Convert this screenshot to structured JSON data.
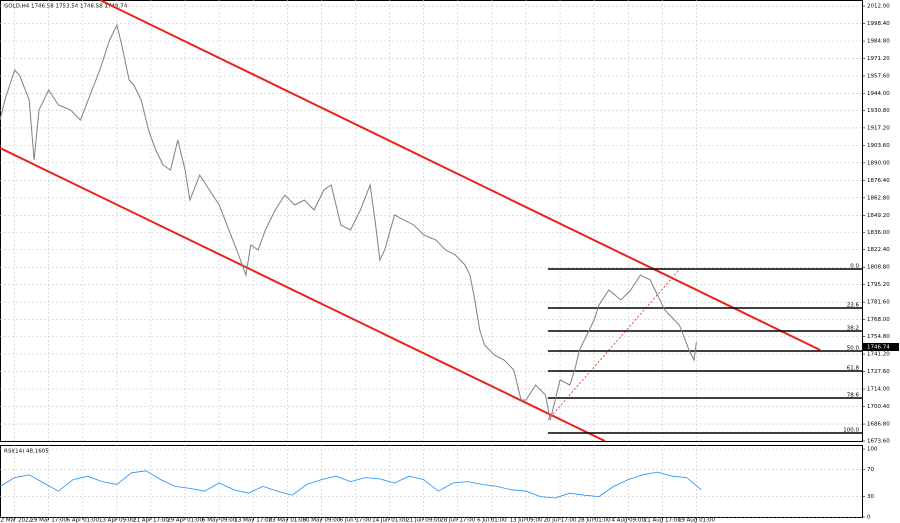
{
  "header": "GOLD,H4  1746.58 1753.54 1746.58 1749.74",
  "chart_data": [
    {
      "type": "line",
      "color": "#808080",
      "grid": true,
      "xlim": [
        -3,
        174
      ],
      "ylim": [
        1673.6,
        2016.7
      ],
      "xticks": [
        {
          "value": 0,
          "label": "22 Mar 2022"
        },
        {
          "value": 7,
          "label": "29 Mar 17:00"
        },
        {
          "value": 14,
          "label": "6 Apr 01:00"
        },
        {
          "value": 21,
          "label": "13 Apr 09:00"
        },
        {
          "value": 28,
          "label": "21 Apr 17:00"
        },
        {
          "value": 35,
          "label": "29 Apr 01:00"
        },
        {
          "value": 42,
          "label": "6 May 09:00"
        },
        {
          "value": 49,
          "label": "13 May 17:00"
        },
        {
          "value": 56,
          "label": "23 May 01:00"
        },
        {
          "value": 63,
          "label": "30 May 09:00"
        },
        {
          "value": 70,
          "label": "6 Jun 17:00"
        },
        {
          "value": 77,
          "label": "14 Jun 01:00"
        },
        {
          "value": 84,
          "label": "21 Jun 09:00"
        },
        {
          "value": 91,
          "label": "28 Jun 17:00"
        },
        {
          "value": 98,
          "label": "6 Jul 01:00"
        },
        {
          "value": 105,
          "label": "13 Jul 09:00"
        },
        {
          "value": 112,
          "label": "20 Jul 17:00"
        },
        {
          "value": 119,
          "label": "28 Jul 01:00"
        },
        {
          "value": 126,
          "label": "4 Aug 09:00"
        },
        {
          "value": 133,
          "label": "11 Aug 17:00"
        },
        {
          "value": 140,
          "label": "19 Aug 01:00"
        }
      ],
      "yticks": [
        {
          "value": 2012,
          "label": "2012.00"
        },
        {
          "value": 1998.4,
          "label": "1998.40"
        },
        {
          "value": 1984.8,
          "label": "1984.80"
        },
        {
          "value": 1971.2,
          "label": "1971.20"
        },
        {
          "value": 1957.6,
          "label": "1957.60"
        },
        {
          "value": 1944,
          "label": "1944.00"
        },
        {
          "value": 1930.8,
          "label": "1930.80"
        },
        {
          "value": 1917.2,
          "label": "1917.20"
        },
        {
          "value": 1903.6,
          "label": "1903.60"
        },
        {
          "value": 1890,
          "label": "1890.00"
        },
        {
          "value": 1876.4,
          "label": "1876.40"
        },
        {
          "value": 1862.8,
          "label": "1862.80"
        },
        {
          "value": 1849.2,
          "label": "1849.20"
        },
        {
          "value": 1836,
          "label": "1836.00"
        },
        {
          "value": 1822.4,
          "label": "1822.40"
        },
        {
          "value": 1808.8,
          "label": "1808.80"
        },
        {
          "value": 1795.2,
          "label": "1795.20"
        },
        {
          "value": 1781.6,
          "label": "1781.60"
        },
        {
          "value": 1768,
          "label": "1768.00"
        },
        {
          "value": 1754.8,
          "label": "1754.80"
        },
        {
          "value": 1741.2,
          "label": "1741.20"
        },
        {
          "value": 1727.6,
          "label": "1727.60"
        },
        {
          "value": 1714,
          "label": "1714.00"
        },
        {
          "value": 1700.4,
          "label": "1700.40"
        },
        {
          "value": 1686.8,
          "label": "1686.80"
        },
        {
          "value": 1673.6,
          "label": "1673.60"
        }
      ],
      "x": [
        -3,
        -2,
        0,
        1,
        3,
        4,
        5,
        7,
        9,
        11.5,
        13.5,
        15.5,
        17.5,
        19.5,
        21,
        22,
        23.5,
        24.5,
        26,
        27.5,
        29,
        30.5,
        32,
        33.5,
        35,
        36,
        38,
        40,
        42,
        44,
        46,
        47.5,
        48.5,
        50,
        51.5,
        53.5,
        55.5,
        57.5,
        59.5,
        61.5,
        63.5,
        65,
        67,
        69,
        71,
        73,
        74,
        75,
        76,
        78,
        80,
        82,
        84,
        86.5,
        88.5,
        90.5,
        92.5,
        93.5,
        94.5,
        95.5,
        96.5,
        98.5,
        100.5,
        102.5,
        104,
        105,
        107,
        109,
        110,
        111,
        112,
        114,
        115,
        116,
        117,
        118,
        119,
        120,
        122,
        124.5,
        126.5,
        128.5,
        130.5,
        131.5,
        132.5,
        133.5,
        134.5,
        136.5,
        138.5,
        139.5,
        140
      ],
      "values": [
        1923.3,
        1938.9,
        1962.2,
        1958.3,
        1938.9,
        1892.2,
        1931.1,
        1946.7,
        1935.0,
        1931.1,
        1923.3,
        1942.8,
        1962.2,
        1985.6,
        1997.2,
        1981.7,
        1954.4,
        1950.5,
        1938.9,
        1915.5,
        1900.0,
        1888.3,
        1884.4,
        1907.8,
        1884.4,
        1861.1,
        1880.5,
        1868.9,
        1857.2,
        1837.8,
        1818.3,
        1802.7,
        1826.1,
        1822.2,
        1837.8,
        1853.3,
        1865.0,
        1857.2,
        1861.1,
        1853.3,
        1868.9,
        1872.8,
        1841.6,
        1837.8,
        1853.3,
        1872.8,
        1845.5,
        1814.4,
        1822.2,
        1849.4,
        1845.5,
        1841.6,
        1833.9,
        1830.0,
        1822.2,
        1818.3,
        1810.5,
        1802.7,
        1783.3,
        1760.0,
        1748.3,
        1740.5,
        1736.6,
        1728.8,
        1705.5,
        1705.5,
        1717.2,
        1709.4,
        1690.0,
        1705.5,
        1721.1,
        1717.2,
        1728.8,
        1744.4,
        1752.2,
        1760.0,
        1767.7,
        1779.4,
        1791.1,
        1783.3,
        1791.1,
        1802.7,
        1798.9,
        1791.1,
        1783.3,
        1775.5,
        1771.6,
        1763.8,
        1744.4,
        1736.6,
        1750.6
      ],
      "last_price": {
        "value": 1746.74,
        "label": "1746.74"
      },
      "trendlines": [
        {
          "color": "#e8231d",
          "x": [
            17.5,
            165.4
          ],
          "y": [
            2016.7,
            1744.4
          ]
        },
        {
          "color": "#e8231d",
          "x": [
            -3,
            121.2
          ],
          "y": [
            1901.5,
            1673.6
          ]
        }
      ],
      "fib": {
        "x": [
          109.5,
          174
        ],
        "line_x": [
          109.5,
          136.6
        ],
        "line_y": [
          1690.0,
          1807.4
        ],
        "levels": [
          {
            "label": "0.0",
            "value": 1807.4
          },
          {
            "label": "23.6",
            "value": 1777.1
          },
          {
            "label": "38.2",
            "value": 1759.2
          },
          {
            "label": "50.0",
            "value": 1743.6
          },
          {
            "label": "61.8",
            "value": 1728.1
          },
          {
            "label": "78.6",
            "value": 1707.1
          },
          {
            "label": "100.0",
            "value": 1679.8
          }
        ]
      }
    },
    {
      "type": "line",
      "title": "RSI(14) 48.1605",
      "color": "#1e90ff",
      "grid": true,
      "xlim": [
        -3,
        174
      ],
      "ylim": [
        0,
        100
      ],
      "yticks": [
        100,
        70,
        30,
        0
      ],
      "x": [
        -3,
        0,
        3,
        6,
        9,
        12,
        15,
        18,
        21,
        24,
        27,
        30,
        33,
        36,
        39,
        42,
        45,
        48,
        51,
        54,
        57,
        60,
        63,
        66,
        69,
        72,
        75,
        78,
        81,
        84,
        87,
        90,
        93,
        96,
        99,
        102,
        105,
        108,
        111,
        114,
        117,
        120,
        123,
        126,
        129,
        132,
        135,
        138,
        141
      ],
      "values": [
        45,
        58,
        62,
        50,
        38,
        55,
        60,
        52,
        48,
        65,
        68,
        55,
        45,
        42,
        38,
        50,
        40,
        35,
        45,
        38,
        32,
        48,
        55,
        60,
        52,
        58,
        56,
        50,
        60,
        55,
        38,
        50,
        52,
        48,
        45,
        40,
        38,
        30,
        28,
        35,
        32,
        30,
        45,
        55,
        62,
        66,
        60,
        58,
        40
      ]
    }
  ]
}
